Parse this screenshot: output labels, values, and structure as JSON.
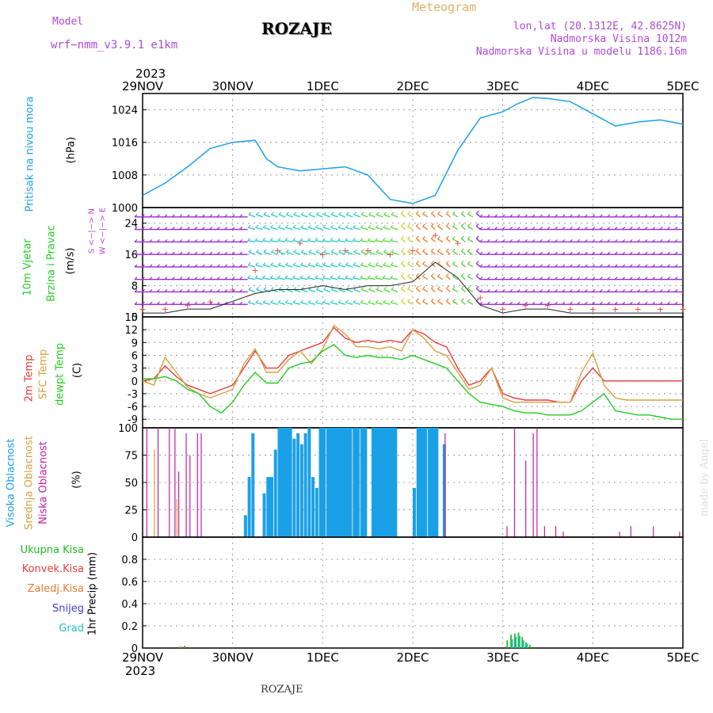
{
  "header": {
    "model_label": "Model",
    "model_name": "wrf−nmm_v3.9.1  e1km",
    "station": "ROZAJE",
    "meteogram": "Meteogram",
    "lonlat": "lon,lat (20.1312E, 42.8625N)",
    "elevation": "Nadmorska Visina 1012m",
    "model_elevation": "Nadmorska Visina u modelu 1186.16m"
  },
  "year_top": "2023",
  "year_bottom": "2023",
  "footer_station": "ROZAJE",
  "credit": "made by Angel",
  "colors": {
    "pressure": "#1aa0e6",
    "temp2m": "#e83c3c",
    "sfc": "#d8a040",
    "dewpt": "#22cc22",
    "high_cloud": "#1aa0e6",
    "mid_cloud": "#e0a030",
    "low_cloud": "#c020a0",
    "total_precip": "#22bb22",
    "conv_precip": "#e83c3c",
    "frz_precip": "#f07830",
    "snow": "#4040e0",
    "hail": "#20c0c0",
    "panel_label_purple": "#b04ad8"
  },
  "panel_labels": {
    "pressure": [
      "Pritisak na nivou mora",
      "(hPa)"
    ],
    "wind": [
      "10m Vjetar",
      "Brzina i Pravac",
      "(m/s)"
    ],
    "wind_compass": [
      "W  <−|−>  E",
      "S <−|−> N"
    ],
    "temp": [
      "2m Temp",
      "SFC Temp",
      "dewpt Temp",
      "(C)"
    ],
    "cloud": [
      "Visoka Oblacnost",
      "Srednja Oblacnost",
      "Niska Oblacnost",
      "(%)"
    ],
    "precip_legend": [
      "Ukupna Kisa",
      "Konvek.Kisa",
      "Zaledj.Kisa",
      "Snijeg",
      "Grad"
    ],
    "precip_units": "1hr Precip (mm)"
  },
  "chart_data": [
    {
      "type": "line",
      "panel": "pressure",
      "x_ticks": [
        "29NOV",
        "30NOV",
        "1DEC",
        "2DEC",
        "3DEC",
        "4DEC",
        "5DEC"
      ],
      "x_hours": [
        0,
        6,
        12,
        18,
        24,
        30,
        33,
        36,
        42,
        48,
        54,
        60,
        66,
        72,
        78,
        84,
        90,
        96,
        100,
        104,
        108,
        114,
        120,
        126,
        132,
        138,
        144
      ],
      "ylim": [
        1000,
        1028
      ],
      "y_ticks": [
        1000,
        1008,
        1016,
        1024
      ],
      "ylabel": "(hPa)",
      "series": [
        {
          "name": "Pritisak na nivou mora",
          "values": [
            1003,
            1006,
            1010,
            1014.5,
            1016,
            1016.5,
            1012,
            1010,
            1009,
            1009.5,
            1010,
            1008,
            1002,
            1001,
            1003,
            1014,
            1022,
            1023.5,
            1025.5,
            1027,
            1026.8,
            1026,
            1023,
            1020,
            1021,
            1021.5,
            1020.5
          ]
        }
      ]
    },
    {
      "type": "line",
      "panel": "wind",
      "ylim": [
        0,
        28
      ],
      "y_ticks": [
        0,
        8,
        16,
        24
      ],
      "ylabel": "(m/s)",
      "x_hours": [
        0,
        6,
        12,
        18,
        24,
        30,
        36,
        42,
        48,
        54,
        60,
        66,
        72,
        78,
        84,
        90,
        96,
        102,
        108,
        114,
        120,
        126,
        132,
        138,
        144
      ],
      "series": [
        {
          "name": "speed",
          "values": [
            1,
            1,
            2,
            2,
            4,
            6,
            7,
            7,
            8,
            7,
            8,
            8,
            9,
            14,
            10,
            3,
            1,
            2,
            2,
            1,
            1,
            1,
            1,
            1,
            1
          ]
        },
        {
          "name": "gust",
          "values": [
            2,
            2,
            3,
            4,
            7,
            12,
            17,
            19,
            16,
            17,
            17,
            16,
            17,
            21,
            19,
            5,
            2,
            3,
            3,
            2,
            2,
            2,
            2,
            2,
            2
          ]
        }
      ]
    },
    {
      "type": "line",
      "panel": "temp",
      "ylim": [
        -11,
        15
      ],
      "y_ticks": [
        -9,
        -6,
        -3,
        0,
        3,
        6,
        9,
        12,
        15
      ],
      "ylabel": "(C)",
      "x_hours": [
        0,
        3,
        6,
        9,
        12,
        15,
        18,
        21,
        24,
        27,
        30,
        33,
        36,
        39,
        42,
        45,
        48,
        51,
        54,
        57,
        60,
        63,
        66,
        69,
        72,
        75,
        78,
        81,
        84,
        87,
        90,
        93,
        96,
        99,
        102,
        105,
        108,
        111,
        114,
        117,
        120,
        123,
        126,
        129,
        132,
        135,
        138,
        141,
        144
      ],
      "series": [
        {
          "name": "2m Temp",
          "values": [
            0,
            0.5,
            3.5,
            1,
            -1,
            -2,
            -3,
            -2,
            -1,
            3,
            7,
            3,
            3,
            6,
            7,
            8,
            9,
            12.5,
            10,
            9,
            9.5,
            9,
            9.5,
            9,
            12,
            11,
            9,
            8,
            3,
            -1,
            0,
            3,
            -3,
            -4,
            -4.5,
            -4.5,
            -4.5,
            -5,
            -5,
            0,
            3,
            0,
            0,
            0,
            0,
            0,
            0,
            0,
            0
          ]
        },
        {
          "name": "SFC Temp",
          "values": [
            0,
            -1,
            5.5,
            2,
            -1.5,
            -3,
            -4,
            -3,
            -2,
            4,
            7.5,
            2,
            2,
            5,
            7,
            4,
            7.5,
            13,
            11,
            8,
            8,
            7.5,
            8,
            7,
            12,
            10,
            7,
            6,
            2,
            -2,
            -1,
            3,
            -4,
            -5,
            -5,
            -5,
            -5,
            -5,
            -5,
            2,
            6.5,
            -1,
            -4,
            -4.5,
            -4.5,
            -4.5,
            -4.5,
            -4.5,
            -4.5
          ]
        },
        {
          "name": "dewpt Temp",
          "values": [
            0.5,
            0.5,
            1,
            0,
            -2,
            -3,
            -6,
            -7.5,
            -5,
            -1,
            2,
            -0.5,
            -0.5,
            3,
            4,
            4.5,
            7,
            8.5,
            6,
            5.5,
            6,
            5.5,
            5.5,
            5,
            6,
            5,
            4,
            3,
            0,
            -3,
            -5,
            -5.5,
            -6,
            -7,
            -7.5,
            -7.5,
            -8,
            -8,
            -8,
            -7,
            -5,
            -3,
            -7,
            -7.5,
            -8,
            -8,
            -8.5,
            -9,
            -9
          ]
        }
      ]
    },
    {
      "type": "bar",
      "panel": "cloud",
      "ylim": [
        0,
        100
      ],
      "y_ticks": [
        0,
        25,
        50,
        75,
        100
      ],
      "ylabel": "(%)",
      "series": [
        {
          "name": "Visoka Oblacnost",
          "segments": [
            [
              27,
              28,
              20
            ],
            [
              28,
              29,
              55
            ],
            [
              29,
              30,
              95
            ],
            [
              32,
              33,
              40
            ],
            [
              33,
              35,
              55
            ],
            [
              35,
              36,
              80
            ],
            [
              36,
              40,
              100
            ],
            [
              40,
              41,
              90
            ],
            [
              41,
              42,
              95
            ],
            [
              42,
              43,
              85
            ],
            [
              43,
              44,
              95
            ],
            [
              44,
              45,
              100
            ],
            [
              45,
              46,
              55
            ],
            [
              46,
              47,
              45
            ],
            [
              47,
              49,
              100
            ],
            [
              49,
              56,
              100
            ],
            [
              56,
              58,
              100
            ],
            [
              58,
              60,
              100
            ],
            [
              61,
              68,
              100
            ],
            [
              66,
              67,
              95
            ],
            [
              72,
              73,
              45
            ],
            [
              73,
              76,
              100
            ],
            [
              76,
              79,
              100
            ],
            [
              80,
              81,
              85
            ]
          ]
        },
        {
          "name": "Srednja Oblacnost",
          "segments": [
            [
              3,
              3.3,
              80
            ],
            [
              9,
              9.3,
              35
            ]
          ]
        },
        {
          "name": "Niska Oblacnost",
          "segments": [
            [
              1,
              1.3,
              100
            ],
            [
              4,
              4.3,
              100
            ],
            [
              7,
              7.3,
              100
            ],
            [
              8.5,
              8.8,
              100
            ],
            [
              9.5,
              9.8,
              60
            ],
            [
              11.5,
              11.8,
              95
            ],
            [
              12.5,
              12.8,
              75
            ],
            [
              14.5,
              14.8,
              95
            ],
            [
              15.5,
              15.8,
              95
            ],
            [
              80.5,
              80.8,
              95
            ],
            [
              97,
              97.3,
              10
            ],
            [
              99,
              99.3,
              100
            ],
            [
              102,
              102.3,
              70
            ],
            [
              104,
              104.3,
              95
            ],
            [
              105,
              105.3,
              100
            ],
            [
              107,
              107.3,
              10
            ],
            [
              110,
              110.3,
              10
            ],
            [
              112,
              112.3,
              5
            ],
            [
              127,
              127.3,
              5
            ],
            [
              130,
              130.3,
              10
            ],
            [
              136,
              136.3,
              10
            ],
            [
              143,
              143.3,
              5
            ]
          ]
        }
      ]
    },
    {
      "type": "bar",
      "panel": "precip",
      "ylim": [
        0,
        1.0
      ],
      "y_ticks": [
        0,
        0.2,
        0.4,
        0.6,
        0.8
      ],
      "ylabel": "1hr Precip (mm)",
      "series": [
        {
          "name": "Ukupna Kisa",
          "x": [
            10,
            11,
            97,
            98,
            99,
            100,
            101,
            102,
            103
          ],
          "values": [
            0.015,
            0.02,
            0.07,
            0.12,
            0.13,
            0.14,
            0.1,
            0.05,
            0.03
          ]
        },
        {
          "name": "Konvek.Kisa",
          "x": [],
          "values": []
        },
        {
          "name": "Zaledj.Kisa",
          "x": [
            10
          ],
          "values": [
            0.01
          ]
        },
        {
          "name": "Snijeg",
          "x": [],
          "values": []
        },
        {
          "name": "Grad",
          "x": [
            98,
            99,
            100,
            101,
            102
          ],
          "values": [
            0.08,
            0.1,
            0.11,
            0.07,
            0.04
          ]
        }
      ]
    }
  ]
}
